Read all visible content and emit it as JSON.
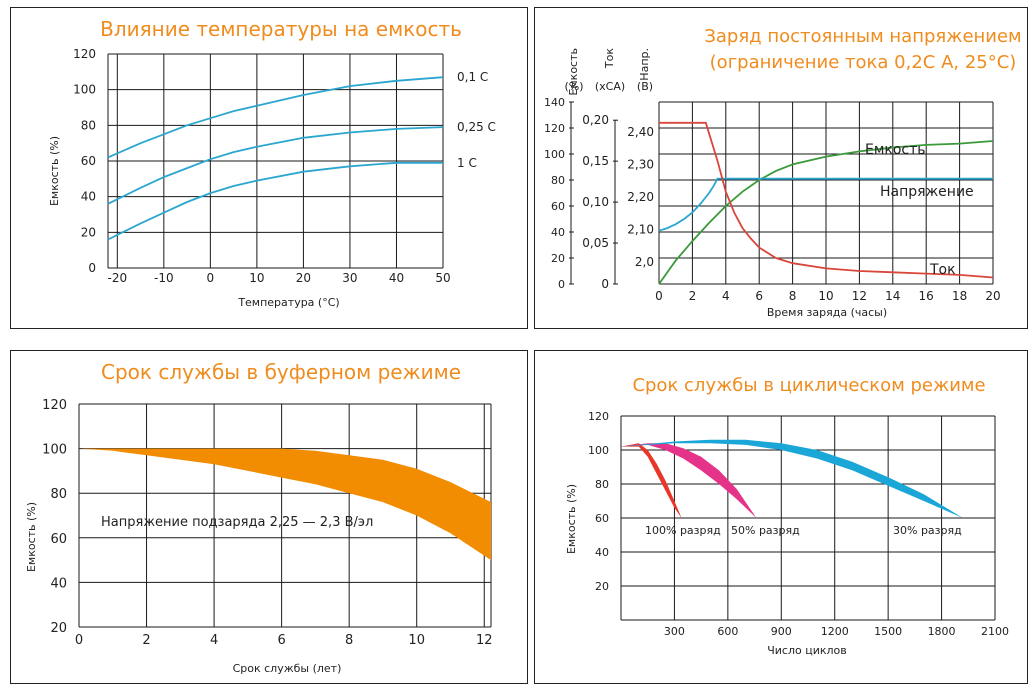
{
  "chart_data": [
    {
      "type": "line",
      "title": "Влияние температуры на емкость",
      "xlabel": "Температура (°C)",
      "ylabel": "Емкость (%)",
      "x_ticks": [
        "-20",
        "-10",
        "0",
        "10",
        "20",
        "30",
        "40",
        "50"
      ],
      "y_ticks": [
        "0",
        "20",
        "40",
        "60",
        "80",
        "100",
        "120"
      ],
      "xlim": [
        -22,
        50
      ],
      "ylim": [
        0,
        120
      ],
      "grid": true,
      "series_color": "#2aa6cf",
      "series": [
        {
          "name": "0,1 C",
          "x": [
            -22,
            -15,
            -10,
            -5,
            0,
            5,
            10,
            20,
            30,
            40,
            50
          ],
          "y": [
            62,
            70,
            75,
            80,
            84,
            88,
            91,
            97,
            102,
            105,
            107
          ]
        },
        {
          "name": "0,25 C",
          "x": [
            -22,
            -15,
            -10,
            -5,
            0,
            5,
            10,
            20,
            30,
            40,
            50
          ],
          "y": [
            36,
            45,
            51,
            56,
            61,
            65,
            68,
            73,
            76,
            78,
            79
          ]
        },
        {
          "name": "1 C",
          "x": [
            -22,
            -15,
            -10,
            -5,
            0,
            5,
            10,
            20,
            30,
            40,
            50
          ],
          "y": [
            16,
            25,
            31,
            37,
            42,
            46,
            49,
            54,
            57,
            59,
            59
          ]
        }
      ]
    },
    {
      "type": "line",
      "title": [
        "Заряд постоянным напряжением",
        "(ограничение тока 0,2C А, 25°C)"
      ],
      "xlabel": "Время заряда (часы)",
      "axis_headers": [
        {
          "label": "Емкость",
          "unit": "(%)"
        },
        {
          "label": "Ток",
          "unit": "(xCA)"
        },
        {
          "label": "Напр.",
          "unit": "(В)"
        }
      ],
      "x_ticks": [
        "0",
        "2",
        "4",
        "6",
        "8",
        "10",
        "12",
        "14",
        "16",
        "18",
        "20"
      ],
      "capacity_ticks": [
        "0",
        "20",
        "40",
        "60",
        "80",
        "100",
        "120",
        "140"
      ],
      "current_ticks": [
        "0",
        "0,05",
        "0,10",
        "0,15",
        "0,20"
      ],
      "voltage_ticks": [
        "2,0",
        "2,10",
        "2,20",
        "2,30",
        "2,40"
      ],
      "xlim": [
        0,
        20
      ],
      "grid": true,
      "series": [
        {
          "name": "Емкость",
          "color": "#3a9a3a",
          "axis": "capacity",
          "x": [
            0,
            1,
            2,
            3,
            4,
            5,
            6,
            7,
            8,
            10,
            12,
            14,
            16,
            18,
            20
          ],
          "y": [
            0,
            18,
            33,
            47,
            60,
            71,
            80,
            87,
            92,
            98,
            102,
            105,
            107,
            108,
            110
          ]
        },
        {
          "name": "Напряжение",
          "color": "#2aa6cf",
          "axis": "capacity",
          "x": [
            0,
            0.5,
            1,
            1.5,
            2,
            2.5,
            3,
            3.3,
            3.5,
            20
          ],
          "y": [
            41,
            43,
            46,
            50,
            55,
            62,
            70,
            76,
            81,
            81
          ]
        },
        {
          "name": "Ток",
          "color": "#d9463a",
          "axis": "capacity",
          "x": [
            0,
            2.8,
            3.5,
            4,
            4.5,
            5,
            5.5,
            6,
            7,
            8,
            10,
            12,
            14,
            16,
            18,
            20
          ],
          "y": [
            124,
            124,
            95,
            71,
            55,
            43,
            35,
            28,
            20,
            16,
            12,
            10,
            9,
            8,
            7,
            5
          ]
        }
      ]
    },
    {
      "type": "area",
      "title": "Срок службы в буферном режиме",
      "xlabel": "Срок службы (лет)",
      "ylabel": "Емкость (%)",
      "x_ticks": [
        "0",
        "2",
        "4",
        "6",
        "8",
        "10",
        "12"
      ],
      "y_ticks": [
        "20",
        "40",
        "60",
        "80",
        "100",
        "120"
      ],
      "xlim": [
        0,
        12.2
      ],
      "ylim": [
        20,
        120
      ],
      "grid": true,
      "annotation": "Напряжение подзаряда 2,25 — 2,3 В/эл",
      "band_color": "#f28c00",
      "band": {
        "x": [
          0,
          1,
          2,
          3,
          4,
          5,
          6,
          7,
          8,
          9,
          10,
          11,
          12.2
        ],
        "upper": [
          100,
          100,
          100,
          100,
          100,
          100,
          100,
          99,
          97,
          95,
          91,
          85,
          76
        ],
        "lower": [
          100,
          99,
          97,
          95,
          93,
          90,
          87,
          84,
          80,
          76,
          70,
          62,
          50
        ]
      }
    },
    {
      "type": "area",
      "title": "Срок службы в циклическом режиме",
      "xlabel": "Число циклов",
      "ylabel": "Емкость (%)",
      "x_ticks": [
        "300",
        "600",
        "900",
        "1200",
        "1500",
        "1800",
        "2100"
      ],
      "y_ticks": [
        "20",
        "40",
        "60",
        "80",
        "100",
        "120"
      ],
      "xlim": [
        0,
        2100
      ],
      "ylim": [
        0,
        120
      ],
      "grid": true,
      "bands": [
        {
          "name": "100% разряд",
          "color": "#e8362a",
          "x": [
            0,
            100,
            150,
            200,
            250,
            300,
            340
          ],
          "upper": [
            102,
            104,
            100,
            92,
            82,
            70,
            60
          ],
          "lower": [
            102,
            102,
            96,
            86,
            76,
            66,
            60
          ]
        },
        {
          "name": "50% разряд",
          "color": "#e6338a",
          "x": [
            0,
            150,
            250,
            350,
            450,
            550,
            650,
            760
          ],
          "upper": [
            102,
            104,
            104,
            101,
            96,
            88,
            77,
            60
          ],
          "lower": [
            102,
            103,
            100,
            95,
            88,
            80,
            71,
            60
          ]
        },
        {
          "name": "30% разряд",
          "color": "#1aa7d8",
          "x": [
            0,
            300,
            500,
            700,
            900,
            1100,
            1300,
            1500,
            1700,
            1920
          ],
          "upper": [
            102,
            105,
            106,
            106,
            104,
            100,
            93,
            84,
            74,
            60
          ],
          "lower": [
            102,
            104,
            104,
            103,
            100,
            95,
            88,
            79,
            70,
            60
          ]
        }
      ]
    }
  ]
}
